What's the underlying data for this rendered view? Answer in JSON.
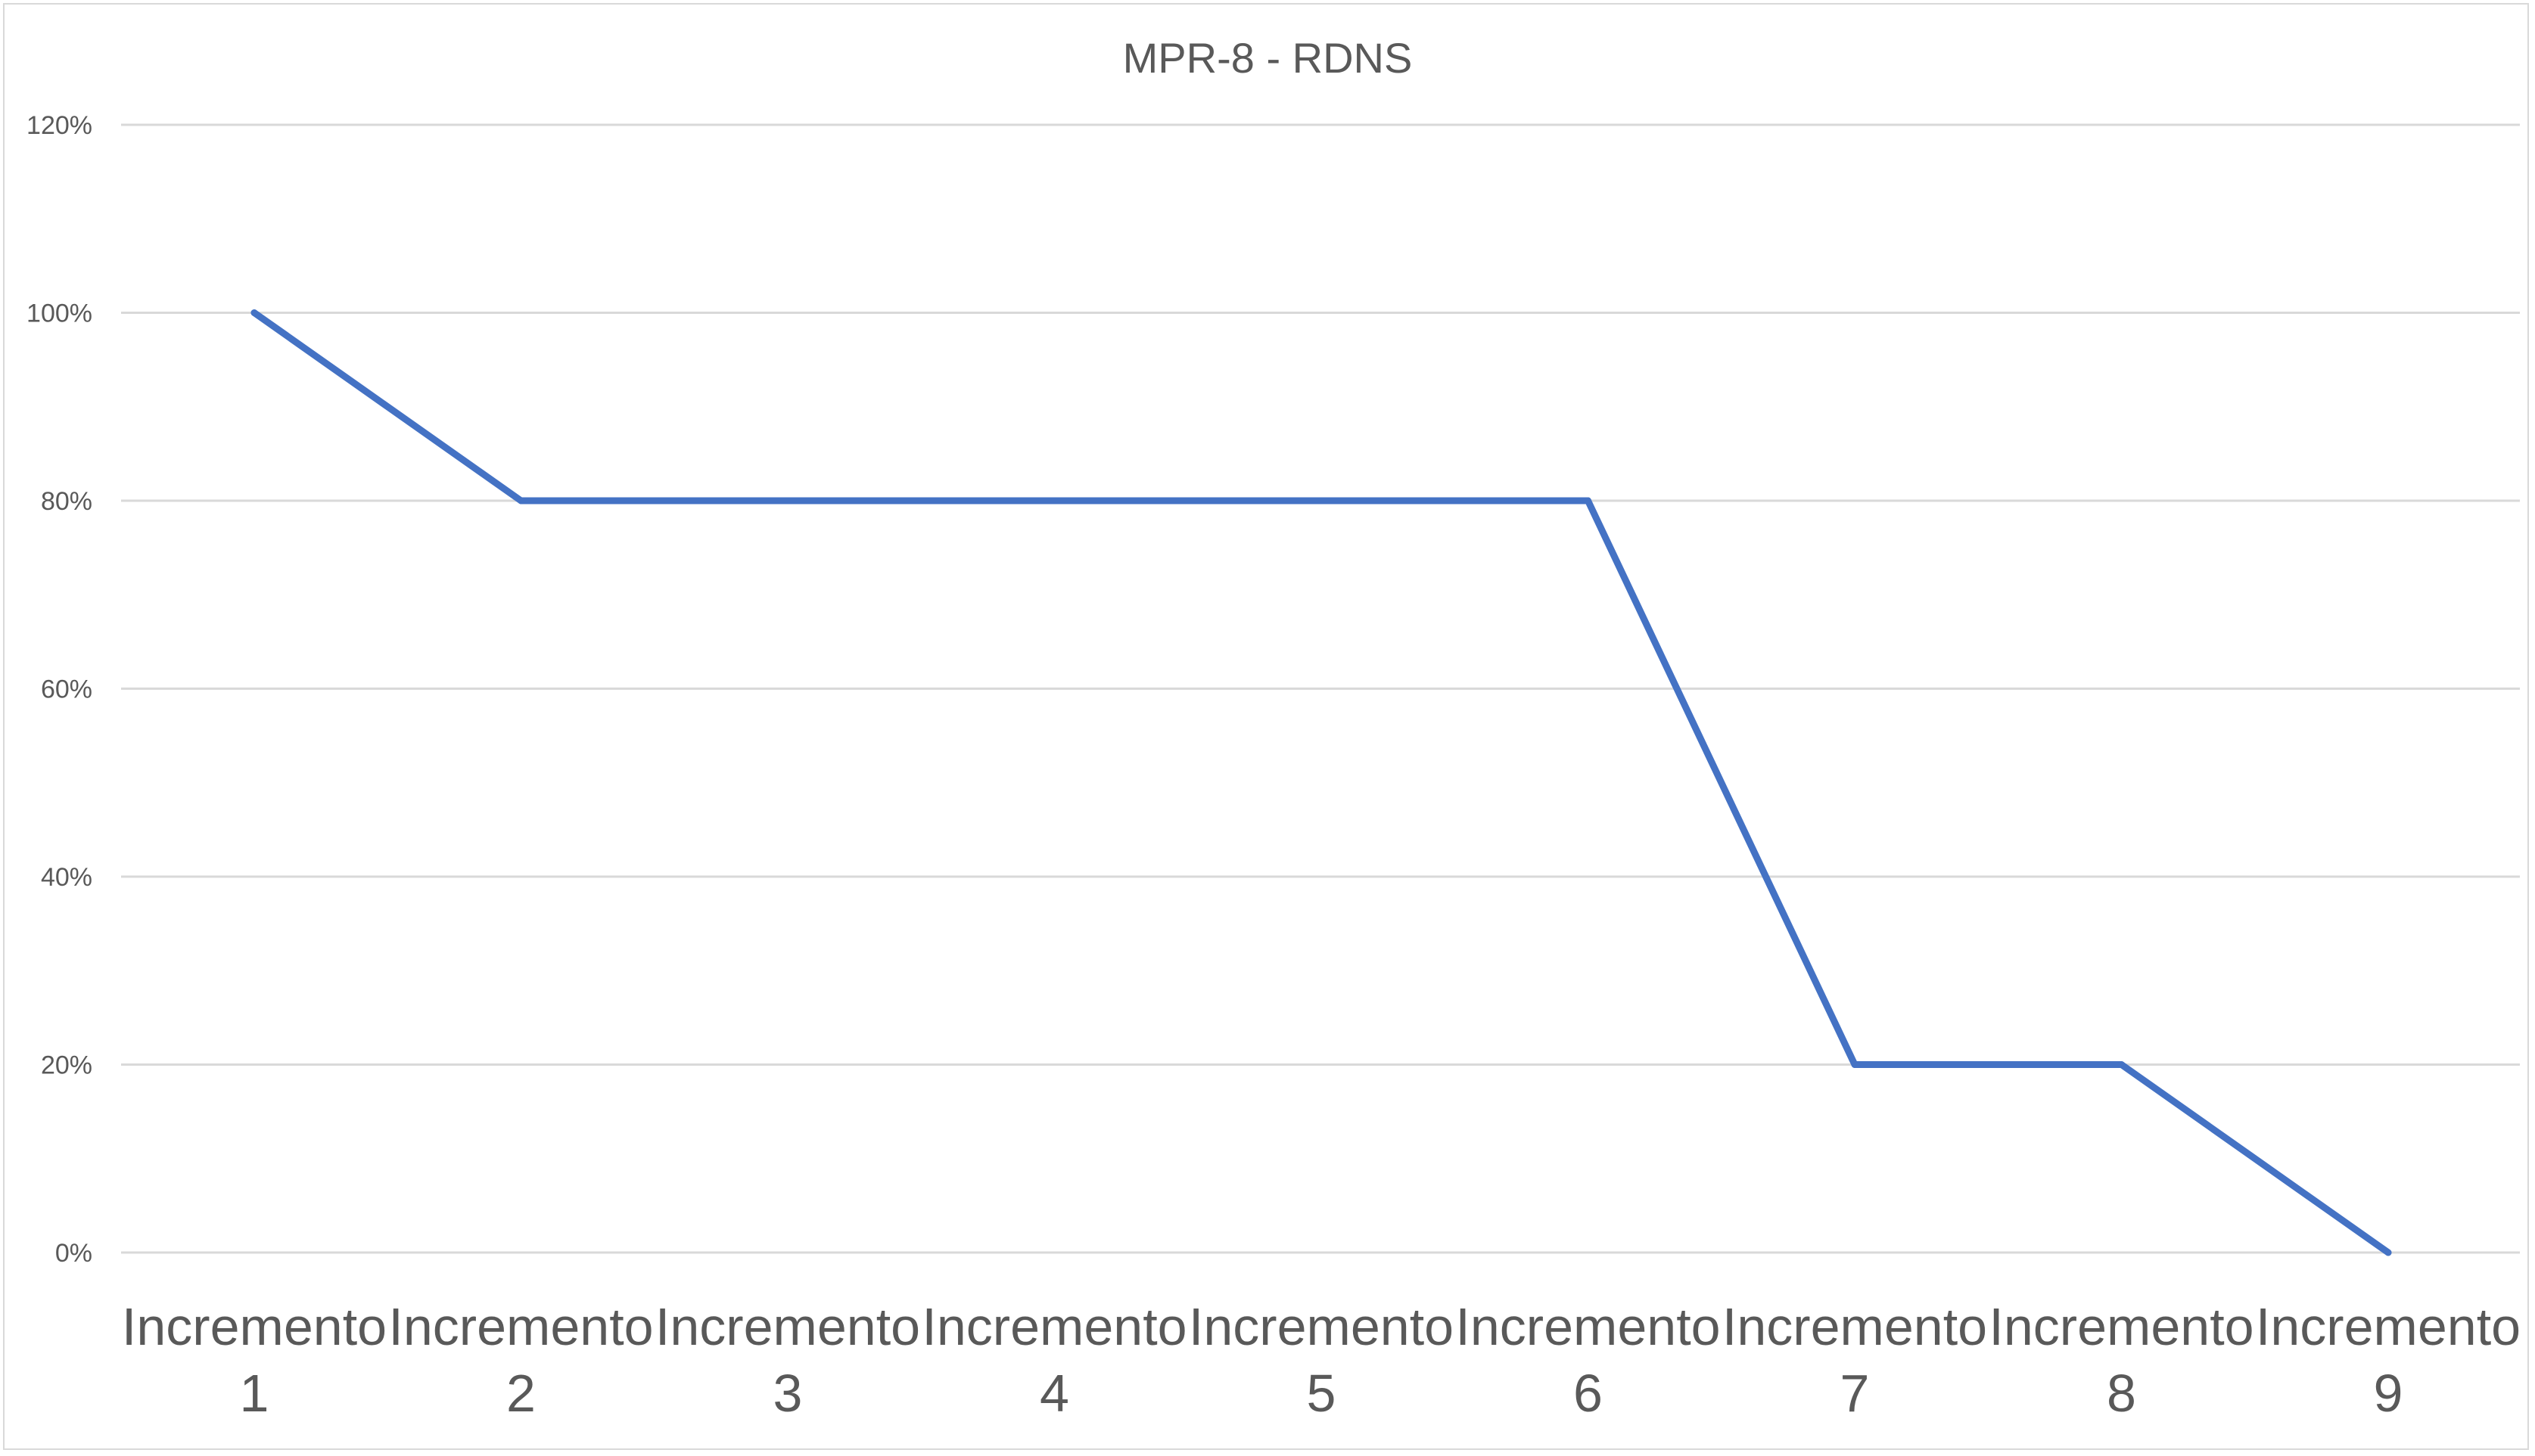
{
  "chart_data": {
    "type": "line",
    "title": "MPR-8 - RDNS",
    "xlabel": "",
    "ylabel": "",
    "categories": [
      [
        "Incremento",
        "1"
      ],
      [
        "Incremento",
        "2"
      ],
      [
        "Incremento",
        "3"
      ],
      [
        "Incremento",
        "4"
      ],
      [
        "Incremento",
        "5"
      ],
      [
        "Incremento",
        "6"
      ],
      [
        "Incremento",
        "7"
      ],
      [
        "Incremento",
        "8"
      ],
      [
        "Incremento",
        "9"
      ]
    ],
    "y_ticks": [
      "0%",
      "20%",
      "40%",
      "60%",
      "80%",
      "100%",
      "120%"
    ],
    "ylim": [
      0,
      1.2
    ],
    "grid": true,
    "legend": "none",
    "series": [
      {
        "values": [
          1.0,
          0.8,
          0.8,
          0.8,
          0.8,
          0.8,
          0.2,
          0.2,
          0.0
        ],
        "color": "#4472C4"
      }
    ]
  }
}
